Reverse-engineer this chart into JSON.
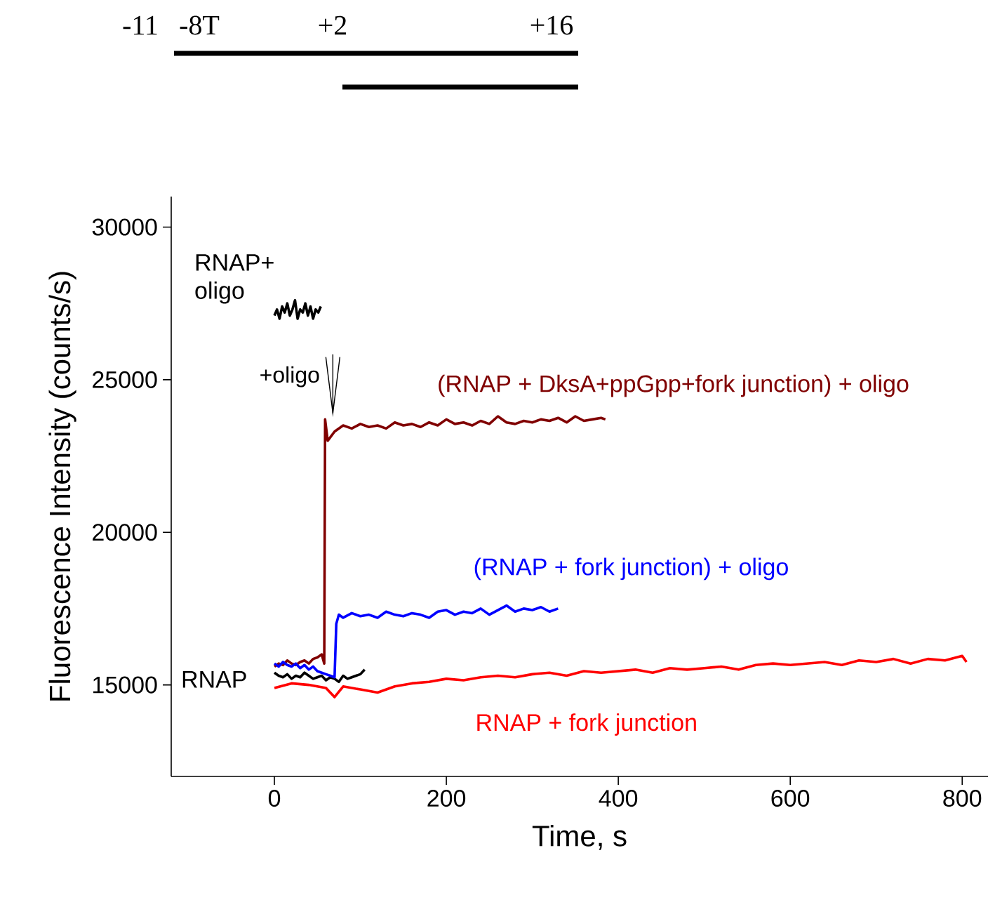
{
  "chart_data": {
    "type": "line",
    "xlabel": "Time, s",
    "ylabel": "Fluorescence Intensity (counts/s)",
    "xlim": [
      -120,
      830
    ],
    "ylim": [
      12000,
      31000
    ],
    "xticks": [
      0,
      200,
      400,
      600,
      800
    ],
    "yticks": [
      15000,
      20000,
      25000,
      30000
    ],
    "annotations": [
      "-11",
      "-8T",
      "+2",
      "+16",
      "+oligo"
    ],
    "series": [
      {
        "name": "RNAP+ oligo",
        "color": "#000000",
        "x": [
          0,
          3,
          6,
          9,
          12,
          15,
          18,
          21,
          24,
          27,
          30,
          33,
          36,
          39,
          42,
          45,
          48,
          51,
          54
        ],
        "values": [
          27100,
          27300,
          27000,
          27400,
          27200,
          27500,
          27100,
          27300,
          27600,
          27000,
          27300,
          27200,
          27500,
          27100,
          27400,
          27000,
          27300,
          27200,
          27400
        ]
      },
      {
        "name": "RNAP",
        "color": "#000000",
        "x": [
          0,
          5,
          10,
          15,
          20,
          25,
          30,
          35,
          40,
          45,
          50,
          55,
          60,
          65,
          70,
          75,
          80,
          85,
          90,
          95,
          100,
          105
        ],
        "values": [
          15400,
          15300,
          15250,
          15350,
          15200,
          15300,
          15250,
          15400,
          15300,
          15200,
          15250,
          15300,
          15150,
          15250,
          15200,
          15100,
          15300,
          15200,
          15250,
          15300,
          15350,
          15500
        ]
      },
      {
        "name": "(RNAP + DksA+ppGpp+fork junction) + oligo",
        "color": "#800000",
        "x": [
          0,
          5,
          10,
          15,
          20,
          25,
          30,
          35,
          40,
          45,
          50,
          55,
          58,
          59,
          62,
          70,
          80,
          90,
          100,
          110,
          120,
          130,
          140,
          150,
          160,
          170,
          180,
          190,
          200,
          210,
          220,
          230,
          240,
          250,
          260,
          270,
          280,
          290,
          300,
          310,
          320,
          330,
          340,
          350,
          360,
          370,
          380,
          385
        ],
        "values": [
          15600,
          15700,
          15650,
          15800,
          15700,
          15650,
          15750,
          15800,
          15700,
          15850,
          15900,
          16000,
          15700,
          23700,
          23000,
          23300,
          23500,
          23400,
          23550,
          23450,
          23500,
          23400,
          23600,
          23500,
          23550,
          23450,
          23600,
          23500,
          23700,
          23550,
          23600,
          23500,
          23650,
          23550,
          23800,
          23600,
          23550,
          23650,
          23600,
          23700,
          23650,
          23750,
          23600,
          23800,
          23650,
          23700,
          23750,
          23700
        ]
      },
      {
        "name": "(RNAP + fork junction) + oligo",
        "color": "#0000ff",
        "x": [
          0,
          5,
          10,
          15,
          20,
          25,
          30,
          35,
          40,
          45,
          50,
          55,
          60,
          65,
          70,
          72,
          75,
          80,
          90,
          100,
          110,
          120,
          130,
          140,
          150,
          160,
          170,
          180,
          190,
          200,
          210,
          220,
          230,
          240,
          250,
          260,
          270,
          280,
          290,
          300,
          310,
          320,
          330
        ],
        "values": [
          15700,
          15600,
          15750,
          15650,
          15600,
          15700,
          15550,
          15650,
          15500,
          15600,
          15450,
          15400,
          15350,
          15300,
          15250,
          17000,
          17300,
          17200,
          17350,
          17250,
          17300,
          17200,
          17400,
          17300,
          17250,
          17350,
          17300,
          17200,
          17400,
          17450,
          17300,
          17400,
          17350,
          17500,
          17300,
          17450,
          17600,
          17400,
          17500,
          17450,
          17550,
          17400,
          17500
        ]
      },
      {
        "name": "RNAP + fork junction",
        "color": "#ff0000",
        "x": [
          0,
          20,
          40,
          60,
          70,
          80,
          100,
          120,
          140,
          160,
          180,
          200,
          220,
          240,
          260,
          280,
          300,
          320,
          340,
          360,
          380,
          400,
          420,
          440,
          460,
          480,
          500,
          520,
          540,
          560,
          580,
          600,
          620,
          640,
          660,
          680,
          700,
          720,
          740,
          760,
          780,
          800,
          805
        ],
        "values": [
          14900,
          15050,
          15000,
          14900,
          14600,
          14950,
          14850,
          14750,
          14950,
          15050,
          15100,
          15200,
          15150,
          15250,
          15300,
          15250,
          15350,
          15400,
          15300,
          15450,
          15400,
          15450,
          15500,
          15400,
          15550,
          15500,
          15550,
          15600,
          15500,
          15650,
          15700,
          15650,
          15700,
          15750,
          15650,
          15800,
          15750,
          15850,
          15700,
          15850,
          15800,
          15950,
          15750
        ]
      }
    ]
  }
}
